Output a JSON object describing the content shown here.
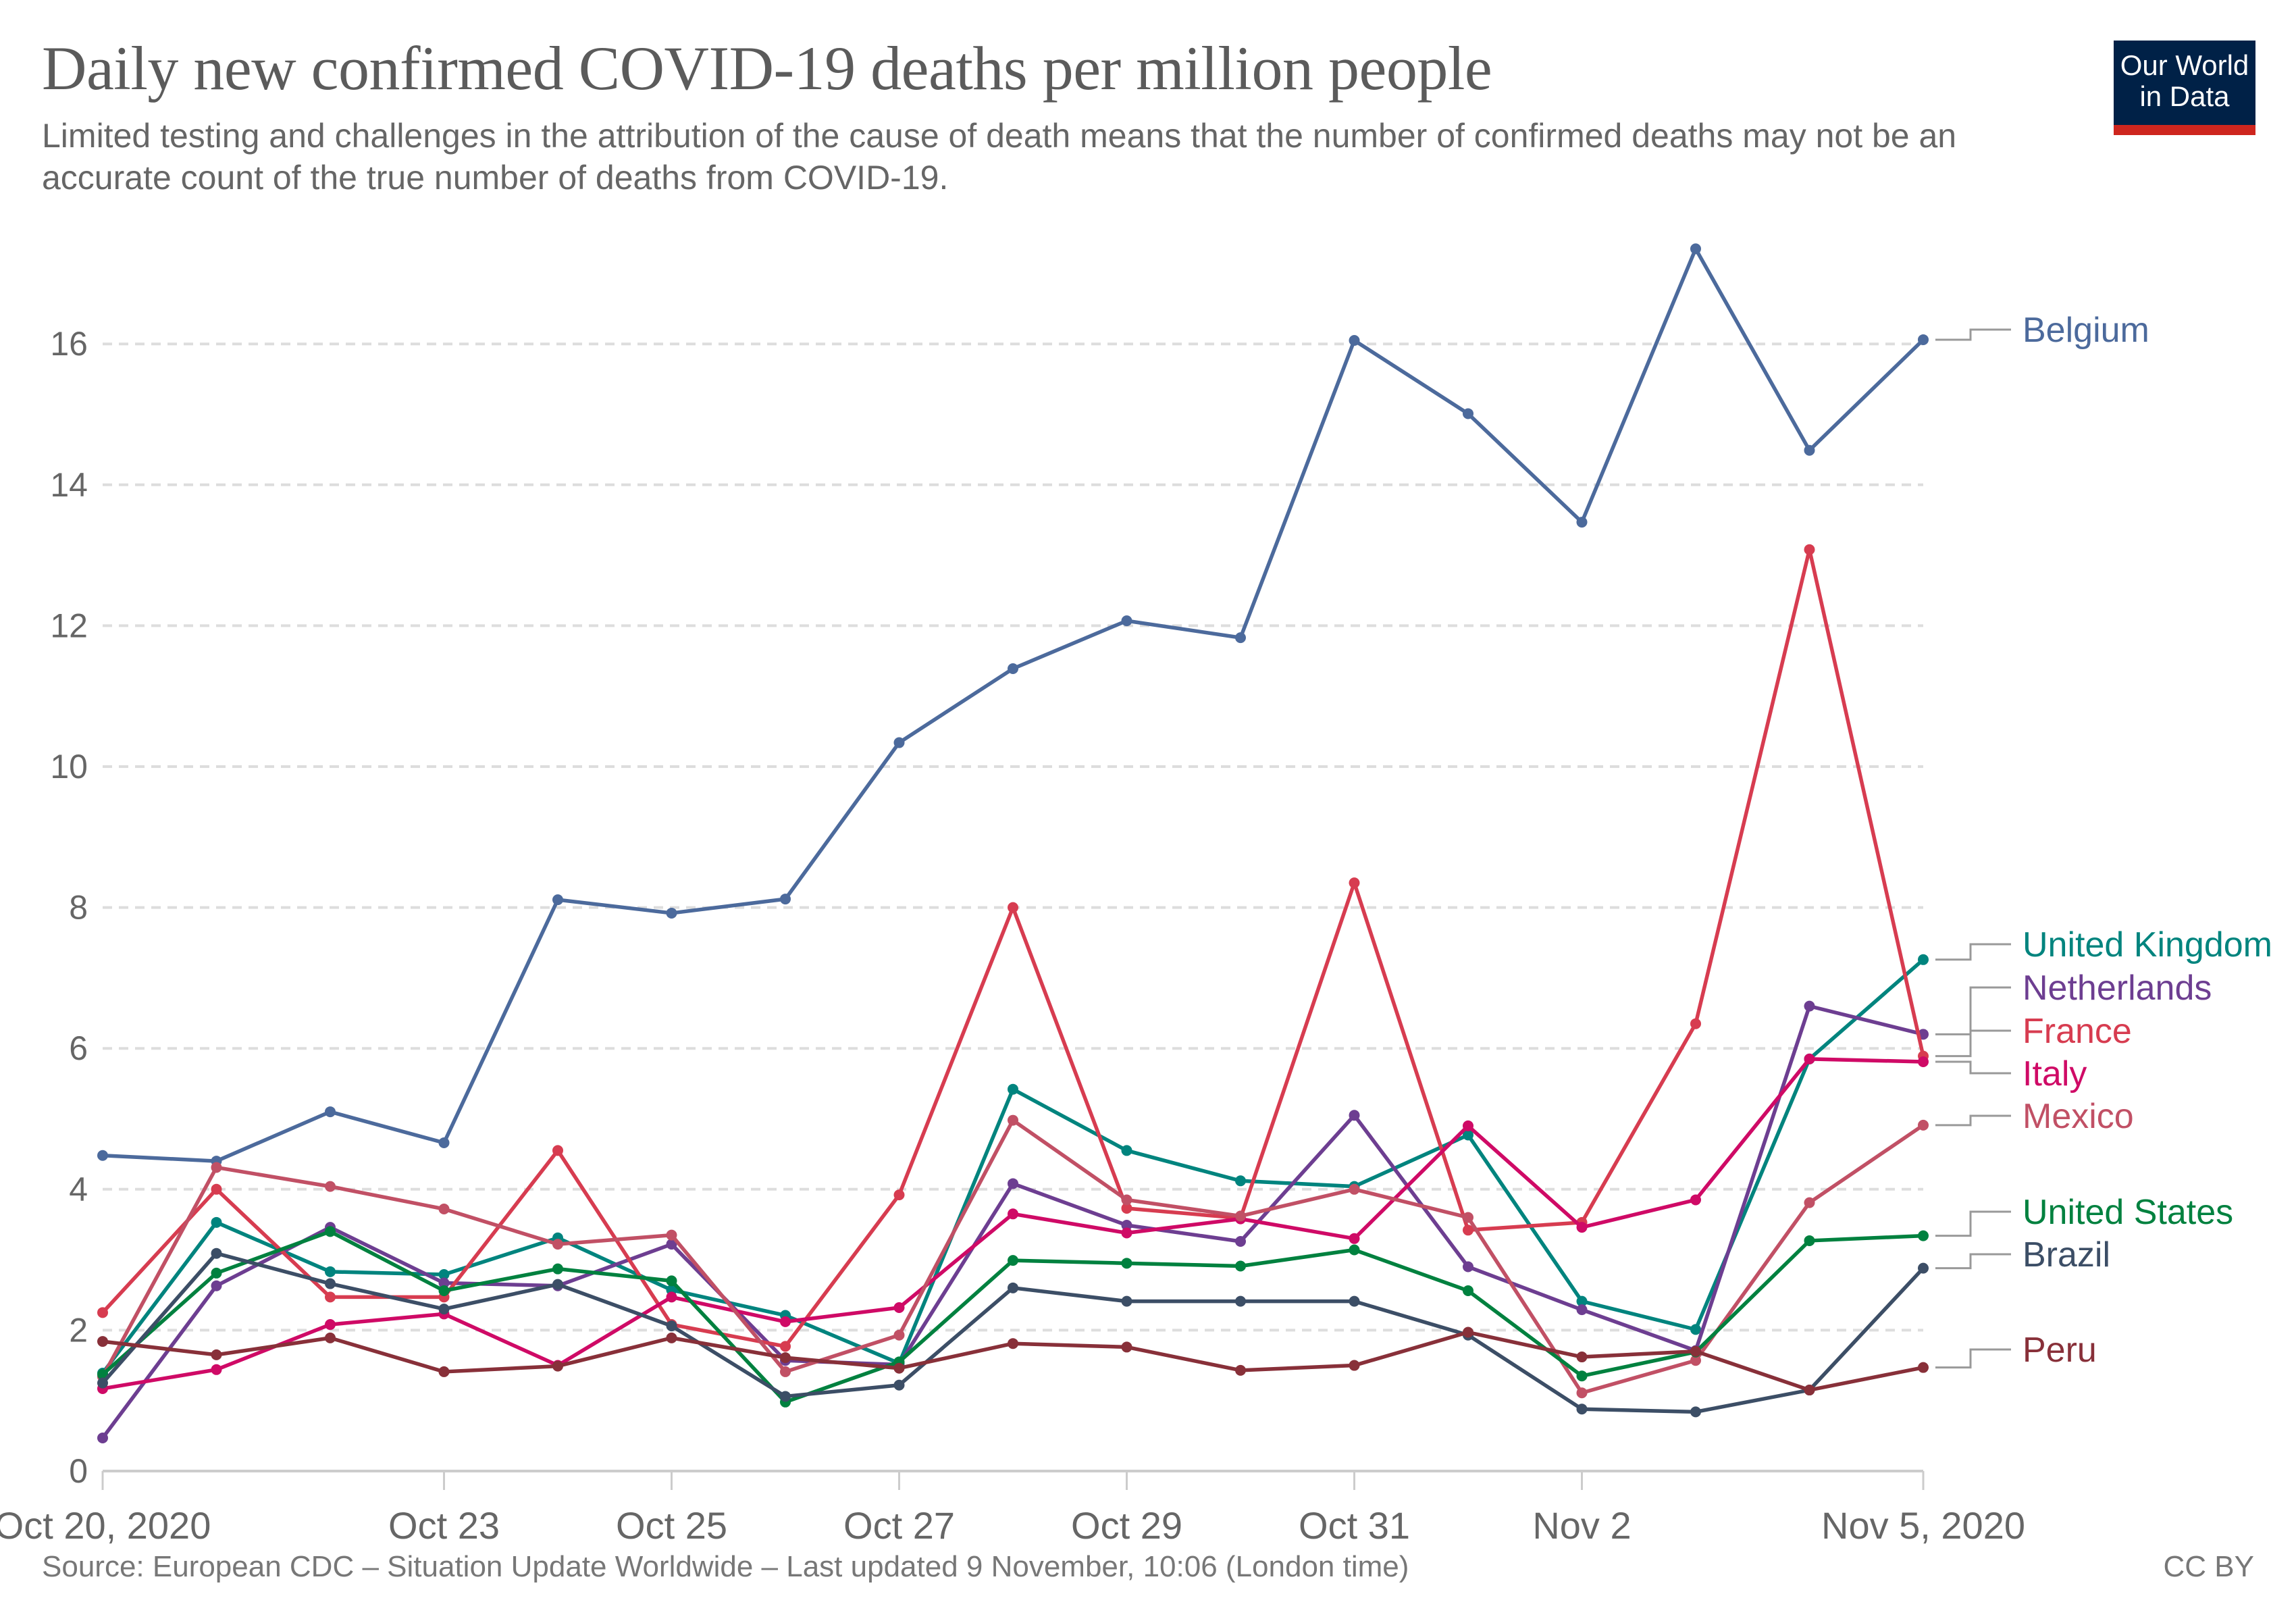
{
  "header": {
    "title": "Daily new confirmed COVID-19 deaths per million people",
    "subtitle": "Limited testing and challenges in the attribution of the cause of death means that the number of confirmed deaths may not be an accurate count of the true number of deaths from COVID-19.",
    "logo_line1": "Our World",
    "logo_line2": "in Data",
    "logo_colors": {
      "background": "#002147",
      "bar": "#ce261e"
    }
  },
  "footer": {
    "source": "Source: European CDC – Situation Update Worldwide – Last updated 9 November, 10:06 (London time)",
    "license": "CC BY"
  },
  "chart_data": {
    "type": "line",
    "title": "Daily new confirmed COVID-19 deaths per million people",
    "xlabel": "",
    "ylabel": "",
    "x": [
      "2020-10-20",
      "2020-10-21",
      "2020-10-22",
      "2020-10-23",
      "2020-10-24",
      "2020-10-25",
      "2020-10-26",
      "2020-10-27",
      "2020-10-28",
      "2020-10-29",
      "2020-10-30",
      "2020-10-31",
      "2020-11-01",
      "2020-11-02",
      "2020-11-03",
      "2020-11-04",
      "2020-11-05"
    ],
    "x_ticks": [
      {
        "index": 0,
        "label": "Oct 20, 2020"
      },
      {
        "index": 3,
        "label": "Oct 23"
      },
      {
        "index": 5,
        "label": "Oct 25"
      },
      {
        "index": 7,
        "label": "Oct 27"
      },
      {
        "index": 9,
        "label": "Oct 29"
      },
      {
        "index": 11,
        "label": "Oct 31"
      },
      {
        "index": 13,
        "label": "Nov 2"
      },
      {
        "index": 16,
        "label": "Nov 5, 2020"
      }
    ],
    "y_ticks": [
      0,
      2,
      4,
      6,
      8,
      10,
      12,
      14,
      16
    ],
    "ylim": [
      0,
      17.5
    ],
    "grid": "horizontal-dashed",
    "legend": "right-end-labels",
    "series": [
      {
        "name": "Belgium",
        "color": "#4c6a9c",
        "values": [
          4.48,
          4.4,
          5.1,
          4.66,
          8.11,
          7.92,
          8.12,
          10.34,
          11.39,
          12.07,
          11.83,
          16.05,
          15.01,
          13.47,
          17.35,
          14.49,
          16.06
        ]
      },
      {
        "name": "United Kingdom",
        "color": "#00847e",
        "values": [
          1.39,
          3.53,
          2.83,
          2.79,
          3.31,
          2.57,
          2.21,
          1.53,
          5.42,
          4.55,
          4.12,
          4.04,
          4.77,
          2.41,
          2.01,
          5.85,
          7.26
        ]
      },
      {
        "name": "Netherlands",
        "color": "#6d3e91",
        "values": [
          0.47,
          2.63,
          3.46,
          2.67,
          2.63,
          3.22,
          1.57,
          1.51,
          4.08,
          3.49,
          3.26,
          5.05,
          2.9,
          2.29,
          1.71,
          6.6,
          6.2
        ]
      },
      {
        "name": "France",
        "color": "#d73c50",
        "values": [
          2.25,
          4.0,
          2.47,
          2.47,
          4.55,
          2.08,
          1.77,
          3.92,
          8.0,
          3.73,
          3.59,
          8.35,
          3.42,
          3.53,
          6.35,
          13.08,
          5.89
        ]
      },
      {
        "name": "Italy",
        "color": "#cf0a66",
        "values": [
          1.17,
          1.44,
          2.08,
          2.23,
          1.5,
          2.47,
          2.12,
          2.32,
          3.65,
          3.38,
          3.58,
          3.3,
          4.9,
          3.46,
          3.85,
          5.85,
          5.81
        ]
      },
      {
        "name": "Mexico",
        "color": "#c15065",
        "values": [
          1.34,
          4.31,
          4.04,
          3.72,
          3.22,
          3.35,
          1.41,
          1.93,
          4.98,
          3.85,
          3.62,
          4.0,
          3.6,
          1.11,
          1.57,
          3.81,
          4.91
        ]
      },
      {
        "name": "United States",
        "color": "#00813f",
        "values": [
          1.37,
          2.81,
          3.4,
          2.56,
          2.87,
          2.7,
          0.98,
          1.55,
          2.99,
          2.95,
          2.91,
          3.14,
          2.56,
          1.35,
          1.69,
          3.27,
          3.34
        ]
      },
      {
        "name": "Brazil",
        "color": "#3c4e66",
        "values": [
          1.25,
          3.09,
          2.66,
          2.3,
          2.65,
          2.06,
          1.06,
          1.22,
          2.6,
          2.41,
          2.41,
          2.41,
          1.93,
          0.88,
          0.84,
          1.15,
          2.88
        ]
      },
      {
        "name": "Peru",
        "color": "#883039",
        "values": [
          1.84,
          1.65,
          1.89,
          1.41,
          1.49,
          1.89,
          1.61,
          1.46,
          1.81,
          1.76,
          1.43,
          1.5,
          1.97,
          1.62,
          1.7,
          1.15,
          1.47
        ]
      }
    ]
  }
}
